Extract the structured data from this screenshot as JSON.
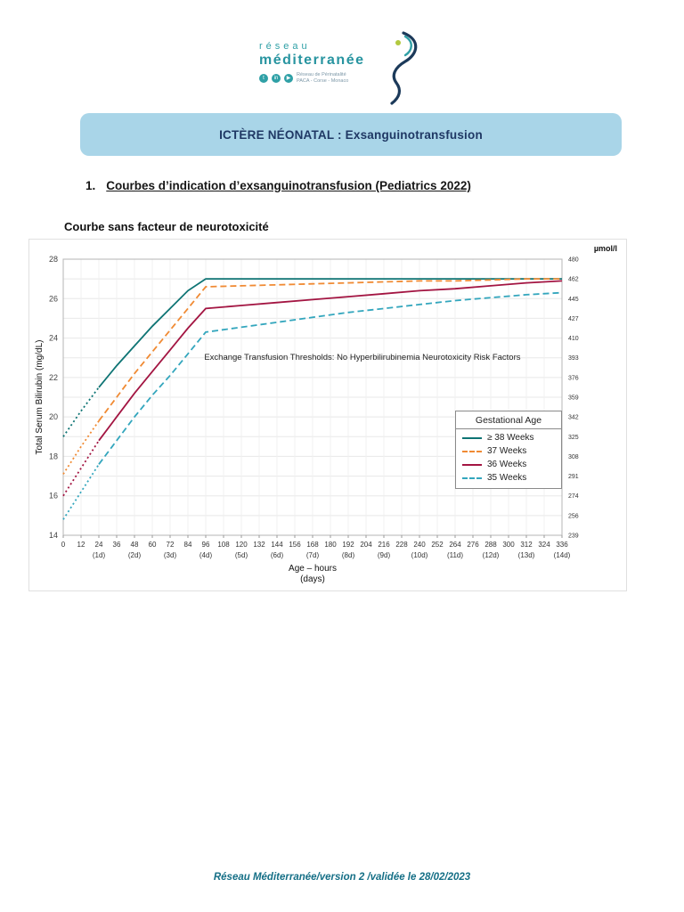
{
  "logo": {
    "line1": "réseau",
    "line2": "méditerranée",
    "subtitle1": "Réseau de Périnatalité",
    "subtitle2": "PACA - Corse - Monaco",
    "social": [
      "t",
      "in",
      "▶"
    ]
  },
  "banner": {
    "title": "ICTÈRE NÉONATAL : Exsanguinotransfusion"
  },
  "heading": {
    "number": "1.",
    "text": "Courbes d’indication d’exsanguinotransfusion (Pediatrics 2022)"
  },
  "chart_title": "Courbe sans facteur de neurotoxicité",
  "chart_data": {
    "type": "line",
    "title": "Courbe sans facteur de neurotoxicité",
    "annotation": "Exchange Transfusion Thresholds: No Hyperbilirubinemia Neurotoxicity Risk Factors",
    "ylabel": "Total Serum Bilirubin (mg/dL)",
    "xlabel_line1": "Age – hours",
    "xlabel_line2": "(days)",
    "right_axis_label": "µmol/l",
    "ylim": [
      14,
      28
    ],
    "xlim": [
      0,
      336
    ],
    "grid": true,
    "legend_position": "right-center",
    "legend_title": "Gestational Age",
    "x_ticks": [
      0,
      12,
      24,
      36,
      48,
      60,
      72,
      84,
      96,
      108,
      120,
      132,
      144,
      156,
      168,
      180,
      192,
      204,
      216,
      228,
      240,
      252,
      264,
      276,
      288,
      300,
      312,
      324,
      336
    ],
    "day_labels": [
      "",
      "",
      "(1d)",
      "",
      "(2d)",
      "",
      "(3d)",
      "",
      "(4d)",
      "",
      "(5d)",
      "",
      "(6d)",
      "",
      "(7d)",
      "",
      "(8d)",
      "",
      "(9d)",
      "",
      "(10d)",
      "",
      "(11d)",
      "",
      "(12d)",
      "",
      "(13d)",
      "",
      "(14d)"
    ],
    "right_ticks": [
      480,
      462,
      445,
      427,
      410,
      393,
      376,
      359,
      342,
      325,
      308,
      291,
      274,
      256,
      239
    ],
    "x": [
      0,
      12,
      24,
      36,
      48,
      60,
      72,
      84,
      96,
      120,
      144,
      168,
      192,
      216,
      240,
      264,
      288,
      312,
      336
    ],
    "series": [
      {
        "name": "≥ 38 Weeks",
        "color": "#0e7474",
        "dash": "solid",
        "dot_until": 24,
        "values": [
          19.0,
          20.3,
          21.5,
          22.6,
          23.6,
          24.6,
          25.5,
          26.4,
          27.0,
          27.0,
          27.0,
          27.0,
          27.0,
          27.0,
          27.0,
          27.0,
          27.0,
          27.0,
          27.0
        ]
      },
      {
        "name": "37 Weeks",
        "color": "#f08a33",
        "dash": "dashed",
        "dot_until": 24,
        "values": [
          17.1,
          18.5,
          19.8,
          21.0,
          22.2,
          23.3,
          24.4,
          25.5,
          26.6,
          26.65,
          26.7,
          26.75,
          26.8,
          26.85,
          26.9,
          26.9,
          26.95,
          27.0,
          27.0
        ]
      },
      {
        "name": "36 Weeks",
        "color": "#a31542",
        "dash": "solid",
        "dot_until": 24,
        "values": [
          16.0,
          17.4,
          18.8,
          20.0,
          21.2,
          22.3,
          23.4,
          24.5,
          25.5,
          25.65,
          25.8,
          25.95,
          26.1,
          26.25,
          26.4,
          26.5,
          26.65,
          26.8,
          26.9
        ]
      },
      {
        "name": "35 Weeks",
        "color": "#33a6bd",
        "dash": "dashed",
        "dot_until": 24,
        "values": [
          14.8,
          16.2,
          17.6,
          18.8,
          20.0,
          21.1,
          22.1,
          23.2,
          24.3,
          24.55,
          24.8,
          25.05,
          25.3,
          25.5,
          25.7,
          25.9,
          26.05,
          26.2,
          26.3
        ]
      }
    ]
  },
  "footer": {
    "text": "Réseau Méditerranée/version 2 /validée le 28/02/2023"
  },
  "colors": {
    "banner_bg": "#a9d5e8",
    "banner_text": "#1f3864",
    "footer_text": "#156f86",
    "logo_teal": "#2fa0a6"
  }
}
